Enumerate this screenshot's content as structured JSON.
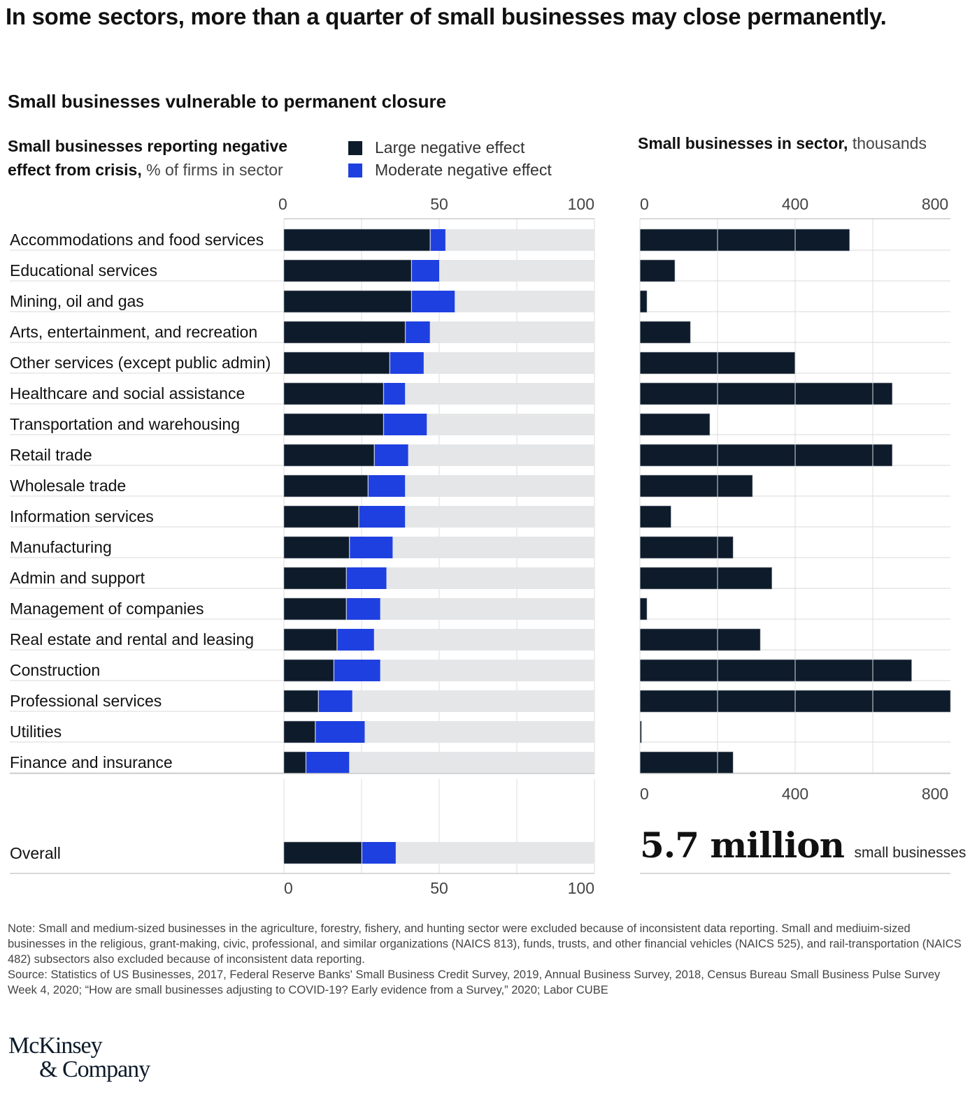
{
  "header": {
    "title": "In some sectors, more than a quarter of small businesses may close permanently.",
    "subtitle": "Small businesses vulnerable to permanent closure"
  },
  "left_panel": {
    "heading_bold": "Small businesses reporting negative effect from crisis,",
    "heading_light": "% of firms in sector"
  },
  "right_panel": {
    "heading_bold": "Small businesses in sector,",
    "heading_light": "thousands"
  },
  "legend": [
    {
      "label": "Large negative effect",
      "color": "#0d1b2a"
    },
    {
      "label": "Moderate negative effect",
      "color": "#1f40e0"
    }
  ],
  "colors": {
    "large": "#0d1b2a",
    "moderate": "#1f40e0",
    "track": "#e5e6e8",
    "grid": "#dcdcdc",
    "axis_text": "#444444"
  },
  "chart_data": [
    {
      "type": "bar",
      "orientation": "horizontal",
      "stacked": true,
      "title": "Small businesses reporting negative effect from crisis, % of firms in sector",
      "xlabel": "% of firms in sector",
      "xlim": [
        0,
        100
      ],
      "xticks": [
        0,
        50,
        100
      ],
      "grid": true,
      "legend": "top",
      "categories": [
        "Accommodations and food services",
        "Educational services",
        "Mining, oil and gas",
        "Arts, entertainment, and recreation",
        "Other services (except public admin)",
        "Healthcare and social assistance",
        "Transportation and warehousing",
        "Retail trade",
        "Wholesale trade",
        "Information services",
        "Manufacturing",
        "Admin and support",
        "Management of companies",
        "Real estate and rental and leasing",
        "Construction",
        "Professional services",
        "Utilities",
        "Finance and insurance"
      ],
      "series": [
        {
          "name": "Large negative effect",
          "values": [
            47,
            41,
            41,
            39,
            34,
            32,
            32,
            29,
            27,
            24,
            21,
            20,
            20,
            17,
            16,
            11,
            10,
            7
          ]
        },
        {
          "name": "Moderate negative effect",
          "values": [
            5,
            9,
            14,
            8,
            11,
            7,
            14,
            11,
            12,
            15,
            14,
            13,
            11,
            12,
            15,
            11,
            16,
            14
          ]
        }
      ],
      "overall": {
        "label": "Overall",
        "large": 25,
        "moderate": 11
      }
    },
    {
      "type": "bar",
      "orientation": "horizontal",
      "title": "Small businesses in sector, thousands",
      "xlabel": "thousands",
      "xlim": [
        0,
        800
      ],
      "xticks": [
        0,
        400,
        800
      ],
      "grid": true,
      "categories": [
        "Accommodations and food services",
        "Educational services",
        "Mining, oil and gas",
        "Arts, entertainment, and recreation",
        "Other services (except public admin)",
        "Healthcare and social assistance",
        "Transportation and warehousing",
        "Retail trade",
        "Wholesale trade",
        "Information services",
        "Manufacturing",
        "Admin and support",
        "Management of companies",
        "Real estate and rental and leasing",
        "Construction",
        "Professional services",
        "Utilities",
        "Finance and insurance"
      ],
      "values": [
        540,
        90,
        18,
        130,
        400,
        650,
        180,
        650,
        290,
        80,
        240,
        340,
        18,
        310,
        700,
        820,
        4,
        240
      ],
      "summary": {
        "value": "5.7 million",
        "caption": "small businesses"
      }
    }
  ],
  "footer": {
    "note": "Note: Small and medium-sized businesses in the agriculture, forestry, fishery, and hunting sector were excluded because of inconsistent data reporting. Small and mediuim-sized businesses in the religious, grant-making, civic, professional, and similar organizations (NAICS 813), funds, trusts, and other financial vehicles (NAICS 525), and rail-transportation (NAICS 482) subsectors also excluded because of inconsistent data reporting.",
    "source": "Source: Statistics of US Businesses, 2017, Federal Reserve Banks' Small Business Credit Survey, 2019, Annual Business Survey, 2018, Census Bureau Small Business Pulse Survey Week 4, 2020; “How are small businesses adjusting to COVID-19? Early evidence from a Survey,” 2020; Labor CUBE",
    "logo_line1": "McKinsey",
    "logo_line2": "& Company"
  }
}
